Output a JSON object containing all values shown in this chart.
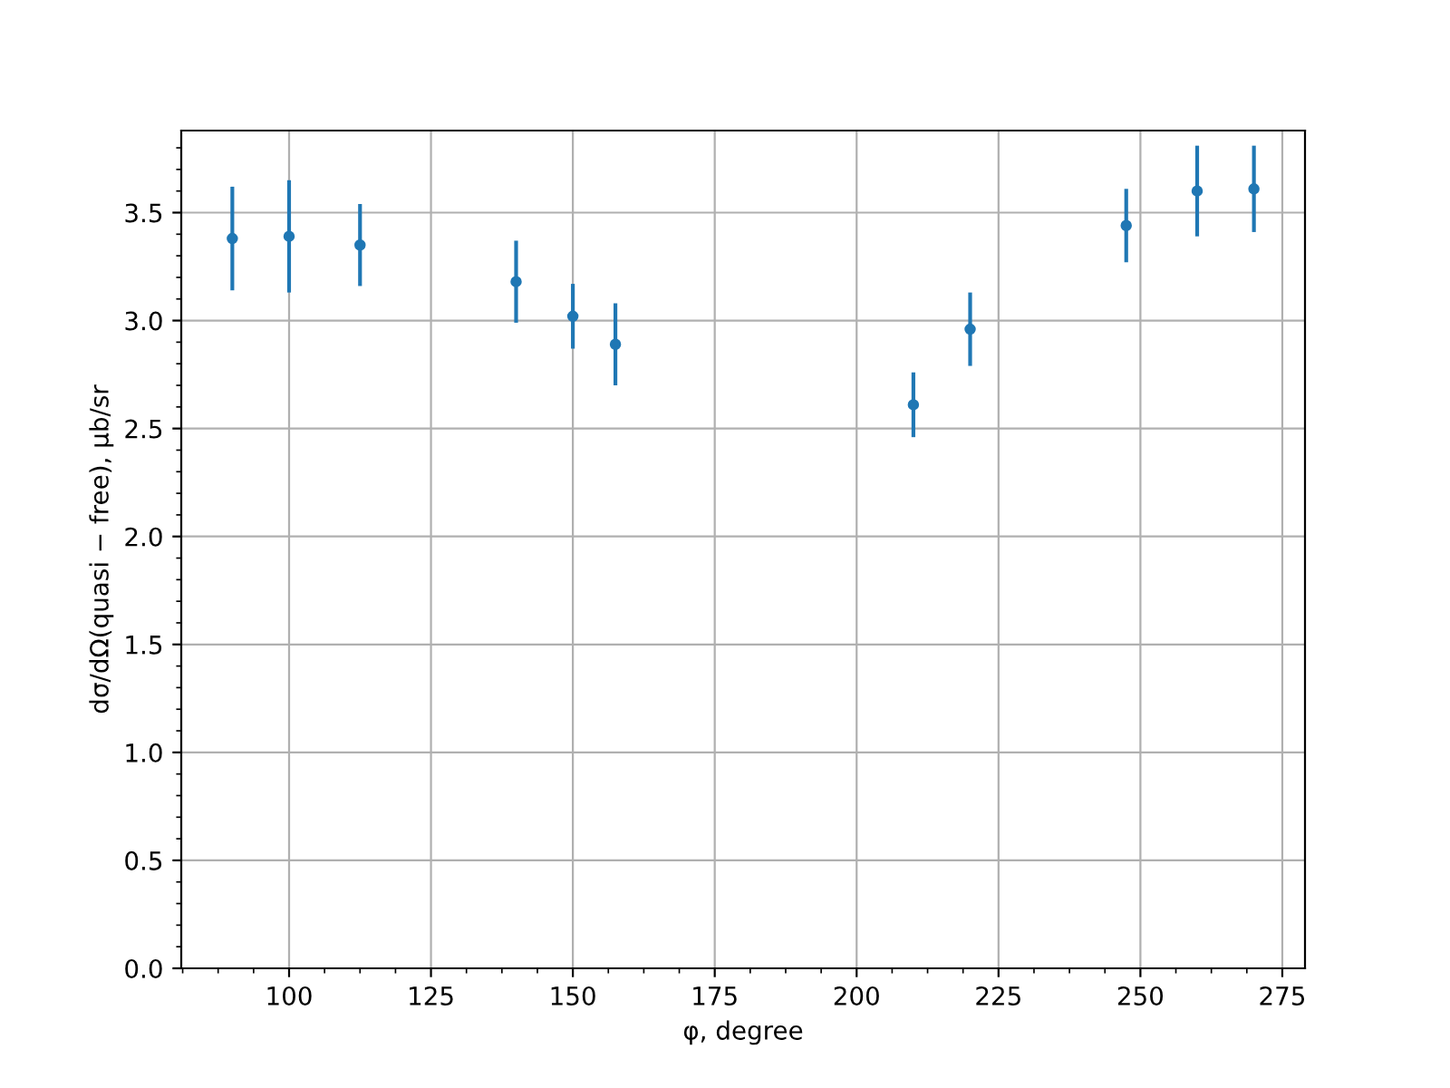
{
  "chart_data": {
    "type": "scatter",
    "xlabel": "φ, degree",
    "ylabel": "dσ/dΩ(quasi − free), μb/sr",
    "x": [
      90,
      100,
      112.5,
      140,
      150,
      157.5,
      210,
      220,
      247.5,
      260,
      270
    ],
    "series": [
      {
        "color": "#1f77b4",
        "values": [
          3.38,
          3.39,
          3.35,
          3.18,
          3.02,
          2.89,
          2.61,
          2.96,
          3.44,
          3.6,
          3.61
        ],
        "errors": [
          0.24,
          0.26,
          0.19,
          0.19,
          0.15,
          0.19,
          0.15,
          0.17,
          0.17,
          0.21,
          0.2
        ]
      }
    ],
    "marker": "circle",
    "grid": true,
    "xlim": [
      81,
      279
    ],
    "ylim": [
      0,
      3.88
    ],
    "xticks": [
      {
        "value": 81.25,
        "label": null
      },
      {
        "value": 87.5,
        "label": null
      },
      {
        "value": 93.75,
        "label": null
      },
      100,
      {
        "value": 106.25,
        "label": null
      },
      {
        "value": 112.5,
        "label": null
      },
      {
        "value": 118.75,
        "label": null
      },
      125,
      {
        "value": 131.25,
        "label": null
      },
      {
        "value": 137.5,
        "label": null
      },
      {
        "value": 143.75,
        "label": null
      },
      150,
      {
        "value": 156.25,
        "label": null
      },
      {
        "value": 162.5,
        "label": null
      },
      {
        "value": 168.75,
        "label": null
      },
      175,
      {
        "value": 181.25,
        "label": null
      },
      {
        "value": 187.5,
        "label": null
      },
      {
        "value": 193.75,
        "label": null
      },
      200,
      {
        "value": 206.25,
        "label": null
      },
      {
        "value": 212.5,
        "label": null
      },
      {
        "value": 218.75,
        "label": null
      },
      225,
      {
        "value": 231.25,
        "label": null
      },
      {
        "value": 237.5,
        "label": null
      },
      {
        "value": 243.75,
        "label": null
      },
      250,
      {
        "value": 256.25,
        "label": null
      },
      {
        "value": 262.5,
        "label": null
      },
      {
        "value": 268.75,
        "label": null
      },
      275
    ],
    "yticks": [
      {
        "value": 0,
        "label": "0.0"
      },
      {
        "value": 0.1,
        "label": null
      },
      {
        "value": 0.2,
        "label": null
      },
      {
        "value": 0.3,
        "label": null
      },
      {
        "value": 0.4,
        "label": null
      },
      0.5,
      {
        "value": 0.6,
        "label": null
      },
      {
        "value": 0.7,
        "label": null
      },
      {
        "value": 0.8,
        "label": null
      },
      {
        "value": 0.9,
        "label": null
      },
      {
        "value": 1,
        "label": "1.0"
      },
      {
        "value": 1.1,
        "label": null
      },
      {
        "value": 1.2,
        "label": null
      },
      {
        "value": 1.3,
        "label": null
      },
      {
        "value": 1.4,
        "label": null
      },
      1.5,
      {
        "value": 1.6,
        "label": null
      },
      {
        "value": 1.7,
        "label": null
      },
      {
        "value": 1.8,
        "label": null
      },
      {
        "value": 1.9,
        "label": null
      },
      {
        "value": 2,
        "label": "2.0"
      },
      {
        "value": 2.1,
        "label": null
      },
      {
        "value": 2.2,
        "label": null
      },
      {
        "value": 2.3,
        "label": null
      },
      {
        "value": 2.4,
        "label": null
      },
      2.5,
      {
        "value": 2.6,
        "label": null
      },
      {
        "value": 2.7,
        "label": null
      },
      {
        "value": 2.8,
        "label": null
      },
      {
        "value": 2.9,
        "label": null
      },
      {
        "value": 3,
        "label": "3.0"
      },
      {
        "value": 3.1,
        "label": null
      },
      {
        "value": 3.2,
        "label": null
      },
      {
        "value": 3.3,
        "label": null
      },
      {
        "value": 3.4,
        "label": null
      },
      3.5,
      {
        "value": 3.6,
        "label": null
      },
      {
        "value": 3.7,
        "label": null
      },
      {
        "value": 3.8,
        "label": null
      }
    ]
  }
}
